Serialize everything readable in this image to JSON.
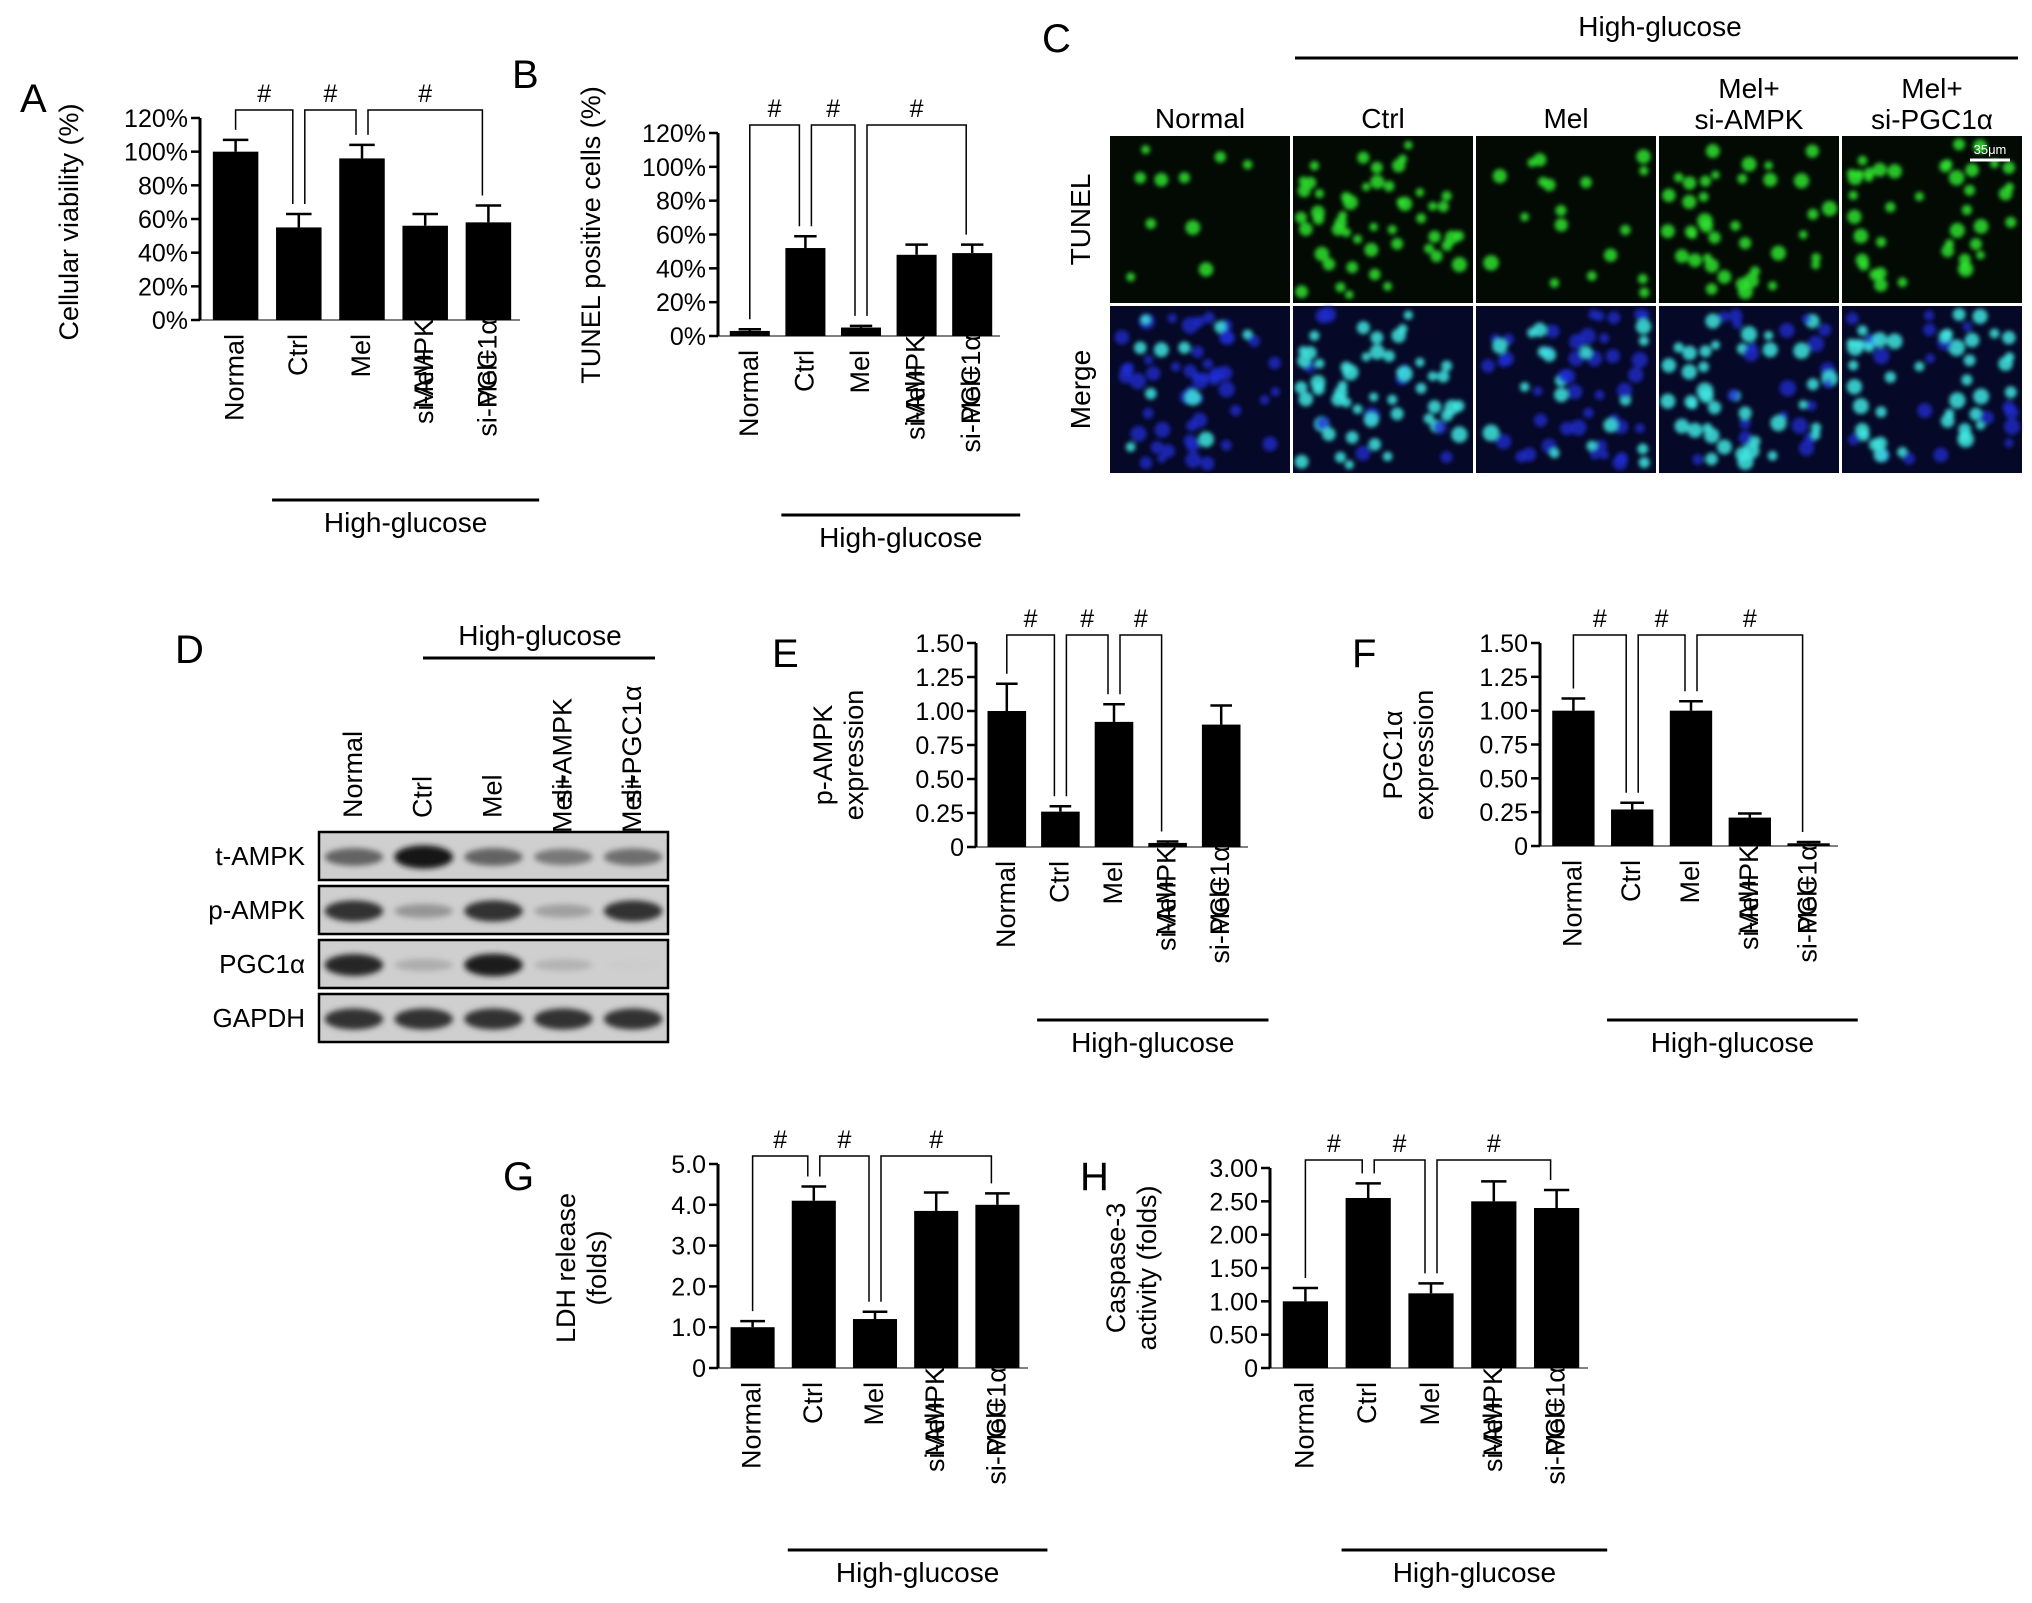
{
  "figure": {
    "group_label": "High-glucose",
    "significance_mark": "#"
  },
  "chart_data": [
    {
      "id": "A",
      "type": "bar",
      "panel_letter": "A",
      "ylabel": "Cellular viability (%)",
      "categories": [
        "Normal",
        "Ctrl",
        "Mel",
        "Mel+\nsi-AMPK",
        "Mel+\nsi-PGC1α"
      ],
      "values": [
        100,
        55,
        96,
        56,
        58
      ],
      "errors": [
        7,
        8,
        8,
        7,
        10
      ],
      "ylim": [
        0,
        120
      ],
      "yticks": [
        "0%",
        "20%",
        "40%",
        "60%",
        "80%",
        "100%",
        "120%"
      ],
      "comparisons": [
        [
          0,
          1
        ],
        [
          1,
          2
        ],
        [
          2,
          4
        ]
      ],
      "group_range": [
        1,
        4
      ]
    },
    {
      "id": "B",
      "type": "bar",
      "panel_letter": "B",
      "ylabel": "TUNEL positive cells (%)",
      "categories": [
        "Normal",
        "Ctrl",
        "Mel",
        "Mel+\nsi-AMPK",
        "Mel+\nsi-PGC1α"
      ],
      "values": [
        3,
        52,
        5,
        48,
        49
      ],
      "errors": [
        1,
        7,
        1,
        6,
        5
      ],
      "ylim": [
        0,
        120
      ],
      "yticks": [
        "0%",
        "20%",
        "40%",
        "60%",
        "80%",
        "100%",
        "120%"
      ],
      "comparisons": [
        [
          0,
          1
        ],
        [
          1,
          2
        ],
        [
          2,
          4
        ]
      ],
      "group_range": [
        1,
        4
      ]
    },
    {
      "id": "E",
      "type": "bar",
      "panel_letter": "E",
      "ylabel": "p-AMPK\nexpression",
      "categories": [
        "Normal",
        "Ctrl",
        "Mel",
        "Mel+\nsi-AMPK",
        "Mel+\nsi-PGC1α"
      ],
      "values": [
        1.0,
        0.26,
        0.92,
        0.03,
        0.9
      ],
      "errors": [
        0.2,
        0.04,
        0.13,
        0.01,
        0.14
      ],
      "ylim": [
        0,
        1.5
      ],
      "yticks": [
        "0",
        "0.25",
        "0.50",
        "0.75",
        "1.00",
        "1.25",
        "1.50"
      ],
      "comparisons": [
        [
          0,
          1
        ],
        [
          1,
          2
        ],
        [
          2,
          3
        ]
      ],
      "group_range": [
        1,
        4
      ]
    },
    {
      "id": "F",
      "type": "bar",
      "panel_letter": "F",
      "ylabel": "PGC1α\nexpression",
      "categories": [
        "Normal",
        "Ctrl",
        "Mel",
        "Mel+\nsi-AMPK",
        "Mel+\nsi-PGC1α"
      ],
      "values": [
        1.0,
        0.27,
        1.0,
        0.21,
        0.02
      ],
      "errors": [
        0.09,
        0.05,
        0.07,
        0.03,
        0.01
      ],
      "ylim": [
        0,
        1.5
      ],
      "yticks": [
        "0",
        "0.25",
        "0.50",
        "0.75",
        "1.00",
        "1.25",
        "1.50"
      ],
      "comparisons": [
        [
          0,
          1
        ],
        [
          1,
          2
        ],
        [
          2,
          4
        ]
      ],
      "group_range": [
        1,
        4
      ]
    },
    {
      "id": "G",
      "type": "bar",
      "panel_letter": "G",
      "ylabel": "LDH release\n(folds)",
      "categories": [
        "Normal",
        "Ctrl",
        "Mel",
        "Mel+\nsi-AMPK",
        "Mel+\nsi-PGC1α"
      ],
      "values": [
        1.0,
        4.1,
        1.2,
        3.85,
        4.0
      ],
      "errors": [
        0.15,
        0.35,
        0.18,
        0.45,
        0.28
      ],
      "ylim": [
        0,
        5
      ],
      "yticks": [
        "0",
        "1.0",
        "2.0",
        "3.0",
        "4.0",
        "5.0"
      ],
      "comparisons": [
        [
          0,
          1
        ],
        [
          1,
          2
        ],
        [
          2,
          4
        ]
      ],
      "group_range": [
        1,
        4
      ]
    },
    {
      "id": "H",
      "type": "bar",
      "panel_letter": "H",
      "ylabel": "Caspase-3\nactivity (folds)",
      "categories": [
        "Normal",
        "Ctrl",
        "Mel",
        "Mel+\nsi-AMPK",
        "Mel+\nsi-PGC1α"
      ],
      "values": [
        1.0,
        2.55,
        1.12,
        2.5,
        2.4
      ],
      "errors": [
        0.2,
        0.22,
        0.15,
        0.3,
        0.27
      ],
      "ylim": [
        0,
        3
      ],
      "yticks": [
        "0",
        "0.50",
        "1.00",
        "1.50",
        "2.00",
        "2.50",
        "3.00"
      ],
      "comparisons": [
        [
          0,
          1
        ],
        [
          1,
          2
        ],
        [
          2,
          4
        ]
      ],
      "group_range": [
        1,
        4
      ]
    }
  ],
  "panel_C": {
    "panel_letter": "C",
    "columns": [
      "Normal",
      "Ctrl",
      "Mel",
      "Mel+\nsi-AMPK",
      "Mel+\nsi-PGC1α"
    ],
    "rows": [
      "TUNEL",
      "Merge"
    ],
    "scale_bar": "35μm",
    "tunel_color": "#2fe32f",
    "merge_blue": "#1f2fd6",
    "merge_cyan": "#41e6e0",
    "nuclei_density": [
      0.15,
      0.8,
      0.2,
      0.7,
      0.65
    ]
  },
  "panel_D": {
    "panel_letter": "D",
    "lanes": [
      "Normal",
      "Ctrl",
      "Mel",
      "Mel+\nsi-AMPK",
      "Mel+\nsi-PGC1α"
    ],
    "blots": [
      {
        "label": "t-AMPK",
        "intensity": [
          0.55,
          0.95,
          0.55,
          0.45,
          0.5
        ]
      },
      {
        "label": "p-AMPK",
        "intensity": [
          0.8,
          0.3,
          0.8,
          0.25,
          0.8
        ]
      },
      {
        "label": "PGC1α",
        "intensity": [
          0.85,
          0.18,
          0.9,
          0.15,
          0.03
        ]
      },
      {
        "label": "GAPDH",
        "intensity": [
          0.8,
          0.8,
          0.8,
          0.8,
          0.8
        ]
      }
    ]
  }
}
